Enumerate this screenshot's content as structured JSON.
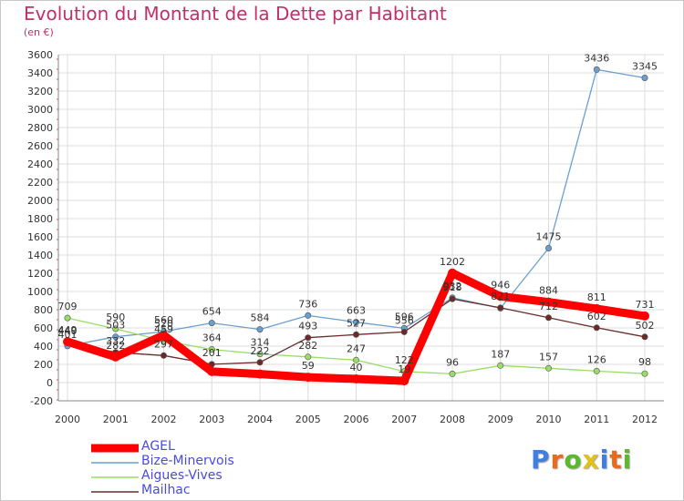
{
  "title": "Evolution du Montant de la Dette par Habitant",
  "subtitle": "(en €)",
  "chart_data": {
    "type": "line",
    "title": "Evolution du Montant de la Dette par Habitant",
    "ylabel": "(en €)",
    "xlabel": "",
    "ylim": [
      -200,
      3600
    ],
    "yticks": [
      -200,
      0,
      200,
      400,
      600,
      800,
      1000,
      1200,
      1400,
      1600,
      1800,
      2000,
      2200,
      2400,
      2600,
      2800,
      3000,
      3200,
      3400,
      3600
    ],
    "categories": [
      "2000",
      "2001",
      "2002",
      "2003",
      "2004",
      "2005",
      "2006",
      "2007",
      "2008",
      "2009",
      "2010",
      "2011",
      "2012"
    ],
    "series": [
      {
        "name": "AGEL",
        "color": "#ff0000",
        "values": [
          449,
          282,
          520,
          121,
          94,
          59,
          40,
          19,
          1202,
          946,
          884,
          811,
          731
        ]
      },
      {
        "name": "Bize-Minervois",
        "color": "#6a9fd0",
        "values": [
          401,
          503,
          560,
          654,
          584,
          736,
          663,
          596,
          932,
          816,
          1475,
          3436,
          3345
        ]
      },
      {
        "name": "Aigues-Vives",
        "color": "#99dd66",
        "values": [
          709,
          590,
          459,
          364,
          314,
          282,
          247,
          122,
          96,
          187,
          157,
          126,
          98
        ]
      },
      {
        "name": "Mailhac",
        "color": "#6b2a2a",
        "values": [
          440,
          332,
          297,
          201,
          222,
          493,
          527,
          556,
          918,
          821,
          712,
          602,
          502
        ]
      }
    ],
    "labels_shown": {
      "AGEL": [
        "449",
        "282",
        "520",
        "",
        "",
        "59",
        "40",
        "19",
        "1202",
        "946",
        "884",
        "811",
        "731"
      ],
      "Bize-Minervois": [
        "401",
        "503",
        "560",
        "654",
        "584",
        "736",
        "663",
        "596",
        "932",
        "",
        "1475",
        "3436",
        "3345"
      ],
      "Aigues-Vives": [
        "709",
        "590",
        "459",
        "364",
        "314",
        "282",
        "247",
        "122",
        "96",
        "187",
        "157",
        "126",
        "98"
      ],
      "Mailhac": [
        "440",
        "332",
        "297",
        "201",
        "222",
        "493",
        "527",
        "556",
        "918",
        "821",
        "712",
        "602",
        "502"
      ]
    },
    "grid": true,
    "legend": "bottom-left"
  },
  "logo": {
    "letters": [
      "P",
      "r",
      "o",
      "x",
      "i",
      "t",
      "i"
    ],
    "colors": [
      "#3f7fe0",
      "#e96a1a",
      "#5cb82c",
      "#e0c21a",
      "#3f7fe0",
      "#e96a1a",
      "#5cb82c"
    ]
  }
}
